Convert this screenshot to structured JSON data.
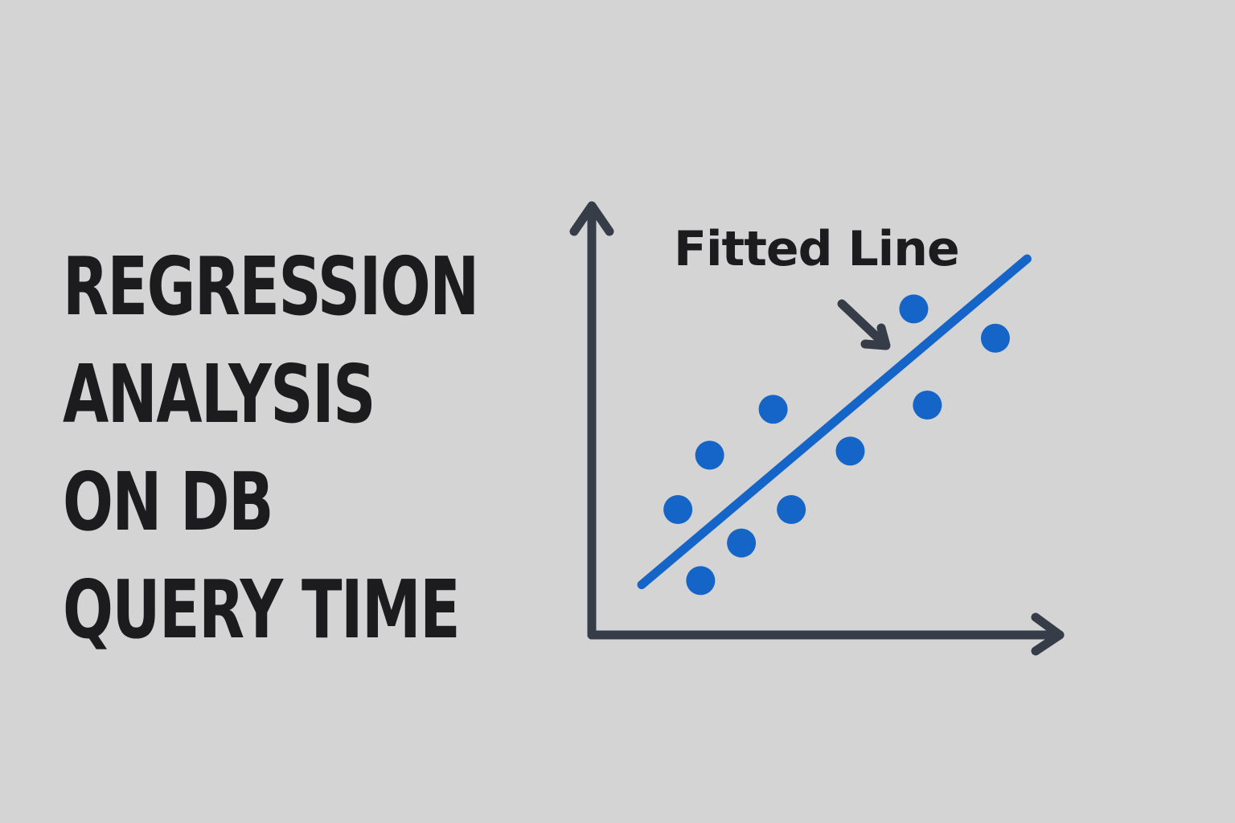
{
  "title": {
    "lines": [
      "REGRESSION",
      "ANALYSIS",
      "ON DB",
      "QUERY TIME"
    ]
  },
  "colors": {
    "background": "#d4d4d4",
    "text": "#1c1c1f",
    "axis": "#363c48",
    "points": "#1565c8",
    "fitted_line": "#1565c8"
  },
  "chart_data": {
    "type": "scatter",
    "title": "",
    "xlabel": "",
    "ylabel": "",
    "xlim": [
      0,
      10
    ],
    "ylim": [
      0,
      10
    ],
    "grid": false,
    "legend": "none",
    "series": [
      {
        "name": "",
        "points": [
          [
            1.9,
            3.0
          ],
          [
            2.4,
            1.3
          ],
          [
            2.6,
            4.3
          ],
          [
            3.3,
            2.2
          ],
          [
            4.0,
            5.4
          ],
          [
            4.4,
            3.0
          ],
          [
            5.7,
            4.4
          ],
          [
            7.1,
            7.8
          ],
          [
            7.4,
            5.5
          ],
          [
            8.9,
            7.1
          ]
        ]
      }
    ],
    "fitted_line": {
      "x": [
        1.1,
        9.6
      ],
      "y": [
        1.2,
        9.0
      ]
    },
    "annotation": {
      "text": "Fitted Line"
    }
  }
}
